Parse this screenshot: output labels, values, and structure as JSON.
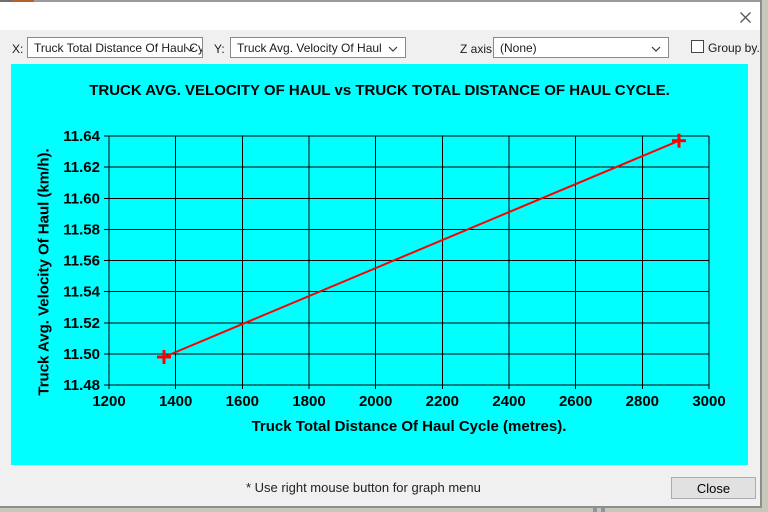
{
  "window": {
    "titlebar_bg": "#ffffff",
    "body_bg": "#f0f0f0",
    "accent_orange": "#b4622f"
  },
  "toolbar": {
    "x_label": "X:",
    "x_dropdown_value": "Truck Total Distance Of Haul Cy",
    "y_label": "Y:",
    "y_dropdown_value": "Truck Avg. Velocity Of Haul",
    "z_label": "Z axis:",
    "z_dropdown_value": "(None)",
    "group_by_label": "Group by.",
    "group_by_checked": false
  },
  "chart_data": {
    "type": "line",
    "title": "TRUCK AVG. VELOCITY OF HAUL vs TRUCK TOTAL DISTANCE OF HAUL CYCLE.",
    "xlabel": "Truck Total Distance Of Haul Cycle (metres).",
    "ylabel": "Truck Avg. Velocity Of Haul (km/h).",
    "xlim": [
      1200,
      3000
    ],
    "ylim": [
      11.48,
      11.64
    ],
    "x_ticks": [
      1200,
      1400,
      1600,
      1800,
      2000,
      2200,
      2400,
      2600,
      2800,
      3000
    ],
    "y_ticks": [
      11.48,
      11.5,
      11.52,
      11.54,
      11.56,
      11.58,
      11.6,
      11.62,
      11.64
    ],
    "grid": true,
    "legend_position": "none",
    "plot_bg": "#00ffff",
    "grid_color": "#000000",
    "series": [
      {
        "name": "Truck Avg. Velocity Of Haul",
        "color": "#ff0000",
        "marker": "plus",
        "points": [
          {
            "x": 1365,
            "y": 11.498
          },
          {
            "x": 2910,
            "y": 11.637
          }
        ]
      }
    ]
  },
  "footer": {
    "hint": "* Use right mouse button for graph menu",
    "close_button_label": "Close"
  }
}
